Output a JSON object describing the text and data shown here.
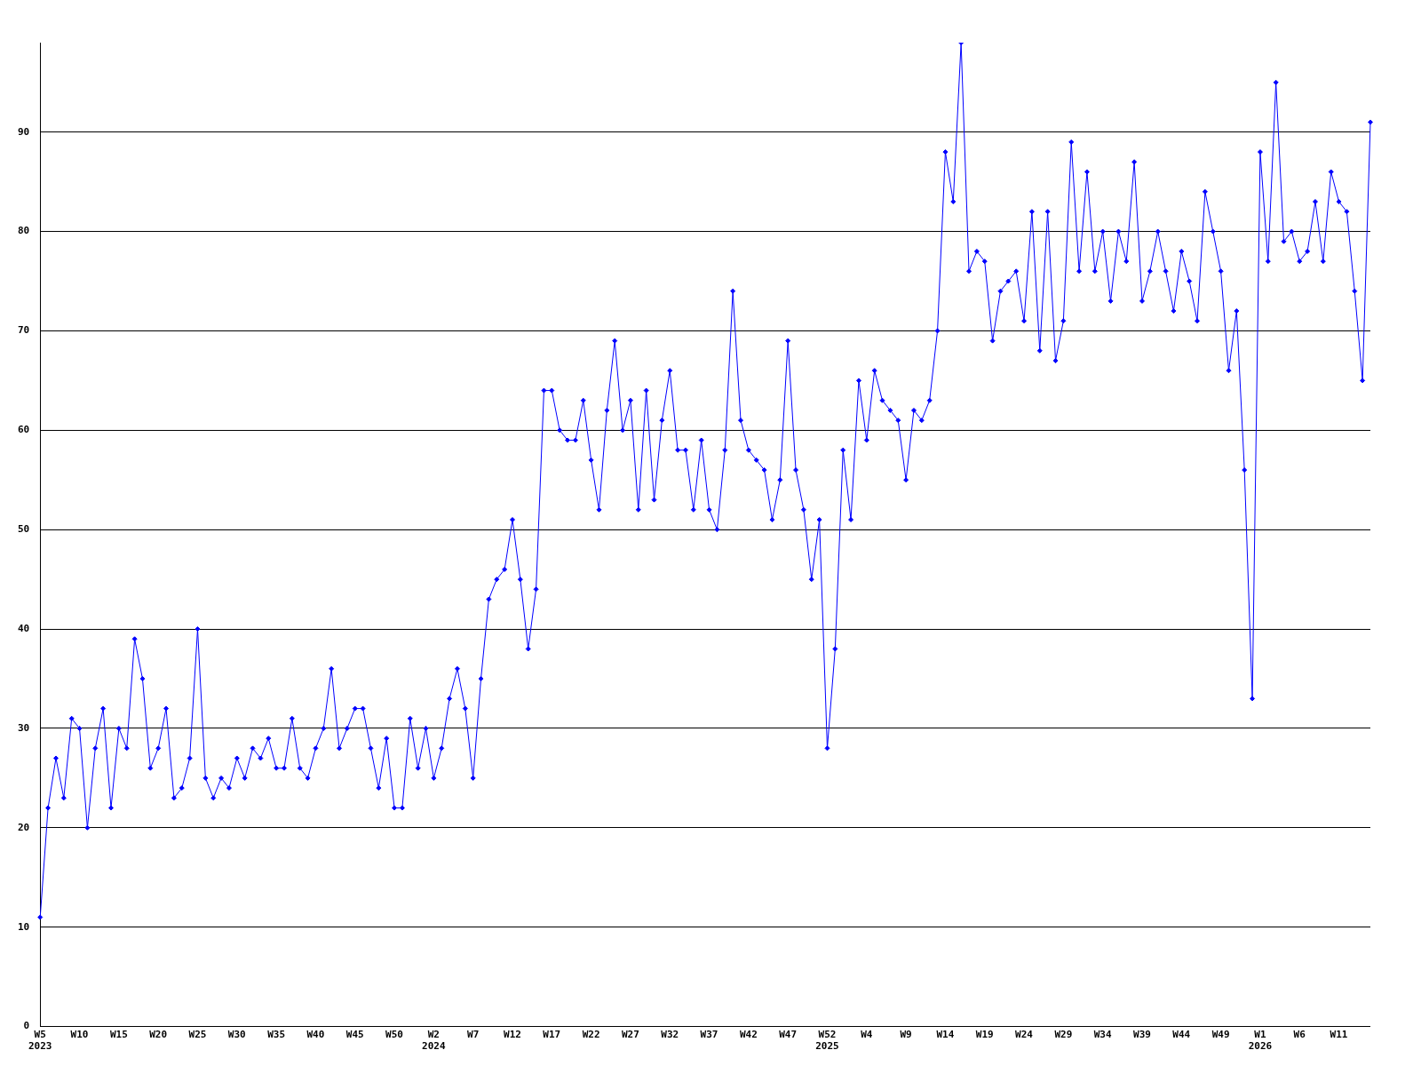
{
  "chart_data": {
    "type": "line",
    "categories": [
      "W5\n2023",
      null,
      null,
      null,
      null,
      "W10",
      null,
      null,
      null,
      null,
      "W15",
      null,
      null,
      null,
      null,
      "W20",
      null,
      null,
      null,
      null,
      "W25",
      null,
      null,
      null,
      null,
      "W30",
      null,
      null,
      null,
      null,
      "W35",
      null,
      null,
      null,
      null,
      "W40",
      null,
      null,
      null,
      null,
      "W45",
      null,
      null,
      null,
      null,
      "W50",
      null,
      null,
      null,
      null,
      "W2\n2024",
      null,
      null,
      null,
      null,
      "W7",
      null,
      null,
      null,
      null,
      "W12",
      null,
      null,
      null,
      null,
      "W17",
      null,
      null,
      null,
      null,
      "W22",
      null,
      null,
      null,
      null,
      "W27",
      null,
      null,
      null,
      null,
      "W32",
      null,
      null,
      null,
      null,
      "W37",
      null,
      null,
      null,
      null,
      "W42",
      null,
      null,
      null,
      null,
      "W47",
      null,
      null,
      null,
      null,
      "W52\n2025",
      null,
      null,
      null,
      null,
      "W4",
      null,
      null,
      null,
      null,
      "W9",
      null,
      null,
      null,
      null,
      "W14",
      null,
      null,
      null,
      null,
      "W19",
      null,
      null,
      null,
      null,
      "W24",
      null,
      null,
      null,
      null,
      "W29",
      null,
      null,
      null,
      null,
      "W34",
      null,
      null,
      null,
      null,
      "W39",
      null,
      null,
      null,
      null,
      "W44",
      null,
      null,
      null,
      null,
      "W49",
      null,
      null,
      null,
      null,
      "W1\n2026",
      null,
      null,
      null,
      null,
      "W6",
      null,
      null,
      null,
      null,
      "W11",
      null,
      null,
      null,
      null
    ],
    "series": [
      {
        "color": "#0000ff",
        "values": [
          11,
          22,
          27,
          23,
          31,
          30,
          20,
          28,
          32,
          22,
          30,
          28,
          39,
          35,
          26,
          28,
          32,
          23,
          24,
          27,
          40,
          25,
          23,
          25,
          24,
          27,
          25,
          28,
          27,
          29,
          26,
          26,
          31,
          26,
          25,
          28,
          30,
          36,
          28,
          30,
          32,
          32,
          28,
          24,
          29,
          22,
          22,
          31,
          26,
          30,
          25,
          28,
          33,
          36,
          32,
          25,
          35,
          43,
          45,
          46,
          51,
          45,
          38,
          44,
          64,
          64,
          60,
          59,
          59,
          63,
          57,
          52,
          62,
          69,
          60,
          63,
          52,
          64,
          53,
          61,
          66,
          58,
          58,
          52,
          59,
          52,
          50,
          58,
          74,
          61,
          58,
          57,
          56,
          51,
          55,
          69,
          56,
          52,
          45,
          51,
          28,
          38,
          58,
          51,
          65,
          59,
          66,
          63,
          62,
          61,
          55,
          62,
          61,
          63,
          70,
          88,
          83,
          99,
          76,
          78,
          77,
          69,
          74,
          75,
          76,
          71,
          82,
          68,
          82,
          67,
          71,
          89,
          76,
          86,
          76,
          80,
          73,
          80,
          77,
          87,
          73,
          76,
          80,
          76,
          72,
          78,
          75,
          71,
          84,
          80,
          76,
          66,
          72,
          56,
          33,
          88,
          77,
          95,
          79,
          80,
          77,
          78,
          83,
          77,
          86,
          83,
          82,
          74,
          65,
          91
        ]
      }
    ],
    "ylim": [
      0,
      99
    ],
    "yticks": [
      0,
      10,
      20,
      30,
      40,
      50,
      60,
      70,
      80,
      90
    ],
    "grid": "y",
    "marker": "diamond",
    "line_style": "solid",
    "legend": false
  }
}
